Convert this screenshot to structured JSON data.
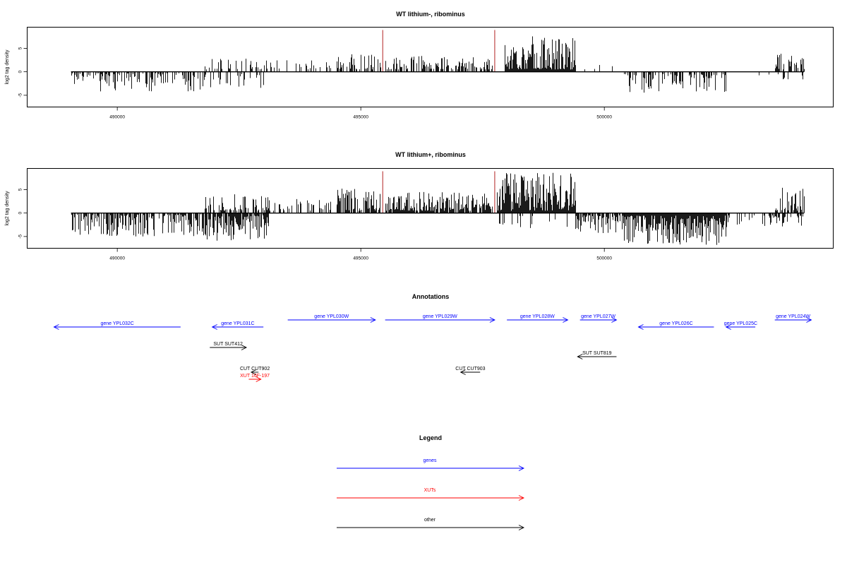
{
  "chart_data": [
    {
      "type": "bar",
      "title": "WT lithium-, ribominus",
      "xlabel": "",
      "ylabel": "log2 tag density",
      "xlim": [
        488150,
        504700
      ],
      "ylim": [
        -7.5,
        9.5
      ],
      "x_ticks": [
        490000,
        495000,
        500000
      ],
      "x_tick_labels": [
        "490000",
        "495000",
        "500000"
      ],
      "y_ticks": [
        -5,
        0,
        5
      ],
      "y_tick_labels": [
        "-5",
        "0",
        "5"
      ],
      "markers_x": [
        495450,
        497750
      ],
      "marker_color": "#b22222",
      "regions": [
        {
          "start": 489050,
          "end": 491800,
          "min": 0.3,
          "max": 4.2,
          "sign": -1,
          "density": 0.5,
          "seed": 11
        },
        {
          "start": 491800,
          "end": 493100,
          "min": 0.5,
          "max": 3.5,
          "sign": -1,
          "density": 0.25,
          "seed": 12
        },
        {
          "start": 491800,
          "end": 493100,
          "min": 0.5,
          "max": 2.8,
          "sign": 1,
          "density": 0.3,
          "seed": 13
        },
        {
          "start": 493100,
          "end": 494500,
          "min": 0.5,
          "max": 3.0,
          "sign": 1,
          "density": 0.2,
          "seed": 14
        },
        {
          "start": 494500,
          "end": 495400,
          "min": 0.5,
          "max": 4.0,
          "sign": 1,
          "density": 0.5,
          "seed": 15
        },
        {
          "start": 495500,
          "end": 497700,
          "min": 0.5,
          "max": 3.5,
          "sign": 1,
          "density": 0.55,
          "seed": 16
        },
        {
          "start": 497950,
          "end": 499400,
          "min": 0.5,
          "max": 7.6,
          "sign": 1,
          "density": 1.0,
          "seed": 17
        },
        {
          "start": 499400,
          "end": 500400,
          "min": 0.5,
          "max": 1.5,
          "sign": 1,
          "density": 0.06,
          "seed": 18
        },
        {
          "start": 500400,
          "end": 502500,
          "min": 0.5,
          "max": 4.5,
          "sign": -1,
          "density": 0.5,
          "seed": 19
        },
        {
          "start": 502500,
          "end": 503500,
          "min": 0.5,
          "max": 2.5,
          "sign": -1,
          "density": 0.08,
          "seed": 20
        },
        {
          "start": 503500,
          "end": 504100,
          "min": 0.5,
          "max": 4.3,
          "sign": 1,
          "density": 0.45,
          "seed": 21
        },
        {
          "start": 503500,
          "end": 504100,
          "min": 0.5,
          "max": 2.0,
          "sign": -1,
          "density": 0.15,
          "seed": 22
        }
      ]
    },
    {
      "type": "bar",
      "title": "WT lithium+, ribominus",
      "xlabel": "",
      "ylabel": "log2 tag density",
      "xlim": [
        488150,
        504700
      ],
      "ylim": [
        -7.5,
        9.5
      ],
      "x_ticks": [
        490000,
        495000,
        500000
      ],
      "x_tick_labels": [
        "490000",
        "495000",
        "500000"
      ],
      "y_ticks": [
        -5,
        0,
        5
      ],
      "y_tick_labels": [
        "-5",
        "0",
        "5"
      ],
      "markers_x": [
        495450,
        497750
      ],
      "marker_color": "#b22222",
      "regions": [
        {
          "start": 489050,
          "end": 491800,
          "min": 0.3,
          "max": 5.0,
          "sign": -1,
          "density": 0.6,
          "seed": 31
        },
        {
          "start": 491800,
          "end": 493100,
          "min": 0.5,
          "max": 6.0,
          "sign": -1,
          "density": 0.75,
          "seed": 32
        },
        {
          "start": 491800,
          "end": 493100,
          "min": 0.5,
          "max": 4.0,
          "sign": 1,
          "density": 0.45,
          "seed": 33
        },
        {
          "start": 493100,
          "end": 494500,
          "min": 0.5,
          "max": 3.0,
          "sign": 1,
          "density": 0.35,
          "seed": 34
        },
        {
          "start": 494500,
          "end": 495400,
          "min": 0.5,
          "max": 5.2,
          "sign": 1,
          "density": 0.8,
          "seed": 35
        },
        {
          "start": 495500,
          "end": 497700,
          "min": 0.5,
          "max": 4.5,
          "sign": 1,
          "density": 0.85,
          "seed": 36
        },
        {
          "start": 497800,
          "end": 499400,
          "min": 0.5,
          "max": 8.6,
          "sign": 1,
          "density": 1.0,
          "seed": 37
        },
        {
          "start": 497800,
          "end": 499400,
          "min": 0.5,
          "max": 3.5,
          "sign": -1,
          "density": 0.12,
          "seed": 38
        },
        {
          "start": 499400,
          "end": 500400,
          "min": 0.5,
          "max": 4.5,
          "sign": -1,
          "density": 0.7,
          "seed": 39
        },
        {
          "start": 500400,
          "end": 502500,
          "min": 0.5,
          "max": 6.8,
          "sign": -1,
          "density": 1.0,
          "seed": 40
        },
        {
          "start": 502500,
          "end": 503500,
          "min": 0.5,
          "max": 3.0,
          "sign": -1,
          "density": 0.35,
          "seed": 41
        },
        {
          "start": 503500,
          "end": 504100,
          "min": 0.5,
          "max": 5.8,
          "sign": 1,
          "density": 0.8,
          "seed": 42
        },
        {
          "start": 503500,
          "end": 504100,
          "min": 0.5,
          "max": 3.0,
          "sign": -1,
          "density": 0.3,
          "seed": 43
        }
      ]
    }
  ],
  "annotations": {
    "title": "Annotations",
    "features": [
      {
        "label": "gene YPL032C",
        "start": 488700,
        "end": 491300,
        "strand": "-",
        "row": 1,
        "color": "#0000ff"
      },
      {
        "label": "gene YPL031C",
        "start": 491950,
        "end": 493000,
        "strand": "-",
        "row": 1,
        "color": "#0000ff"
      },
      {
        "label": "gene YPL030W",
        "start": 493500,
        "end": 495300,
        "strand": "+",
        "row": 0,
        "color": "#0000ff"
      },
      {
        "label": "gene YPL029W",
        "start": 495500,
        "end": 497750,
        "strand": "+",
        "row": 0,
        "color": "#0000ff"
      },
      {
        "label": "gene YPL028W",
        "start": 498000,
        "end": 499250,
        "strand": "+",
        "row": 0,
        "color": "#0000ff"
      },
      {
        "label": "gene YPL027W",
        "start": 499500,
        "end": 500250,
        "strand": "+",
        "row": 0,
        "color": "#0000ff"
      },
      {
        "label": "gene YPL026C",
        "start": 500700,
        "end": 502250,
        "strand": "-",
        "row": 1,
        "color": "#0000ff"
      },
      {
        "label": "gene YPL025C",
        "start": 502500,
        "end": 503100,
        "strand": "-",
        "row": 1,
        "color": "#0000ff"
      },
      {
        "label": "gene YPL024W",
        "start": 503500,
        "end": 504250,
        "strand": "+",
        "row": 0,
        "color": "#0000ff"
      },
      {
        "label": "SUT SUT412",
        "start": 491900,
        "end": 492650,
        "strand": "+",
        "row": 2,
        "color": "#000000"
      },
      {
        "label": "SUT SUT819",
        "start": 499450,
        "end": 500250,
        "strand": "-",
        "row": 3,
        "color": "#000000"
      },
      {
        "label": "CUT CUT902",
        "start": 492750,
        "end": 492900,
        "strand": "-",
        "row": 4,
        "color": "#000000"
      },
      {
        "label": "CUT CUT903",
        "start": 497050,
        "end": 497450,
        "strand": "-",
        "row": 4,
        "color": "#000000"
      },
      {
        "label": "XUT 16F-197",
        "start": 492700,
        "end": 492950,
        "strand": "+",
        "row": 5,
        "color": "#ff0000"
      }
    ]
  },
  "legend": {
    "title": "Legend",
    "items": [
      {
        "label": "genes",
        "color": "#0000ff"
      },
      {
        "label": "XUTs",
        "color": "#ff0000"
      },
      {
        "label": "other",
        "color": "#000000"
      }
    ]
  }
}
